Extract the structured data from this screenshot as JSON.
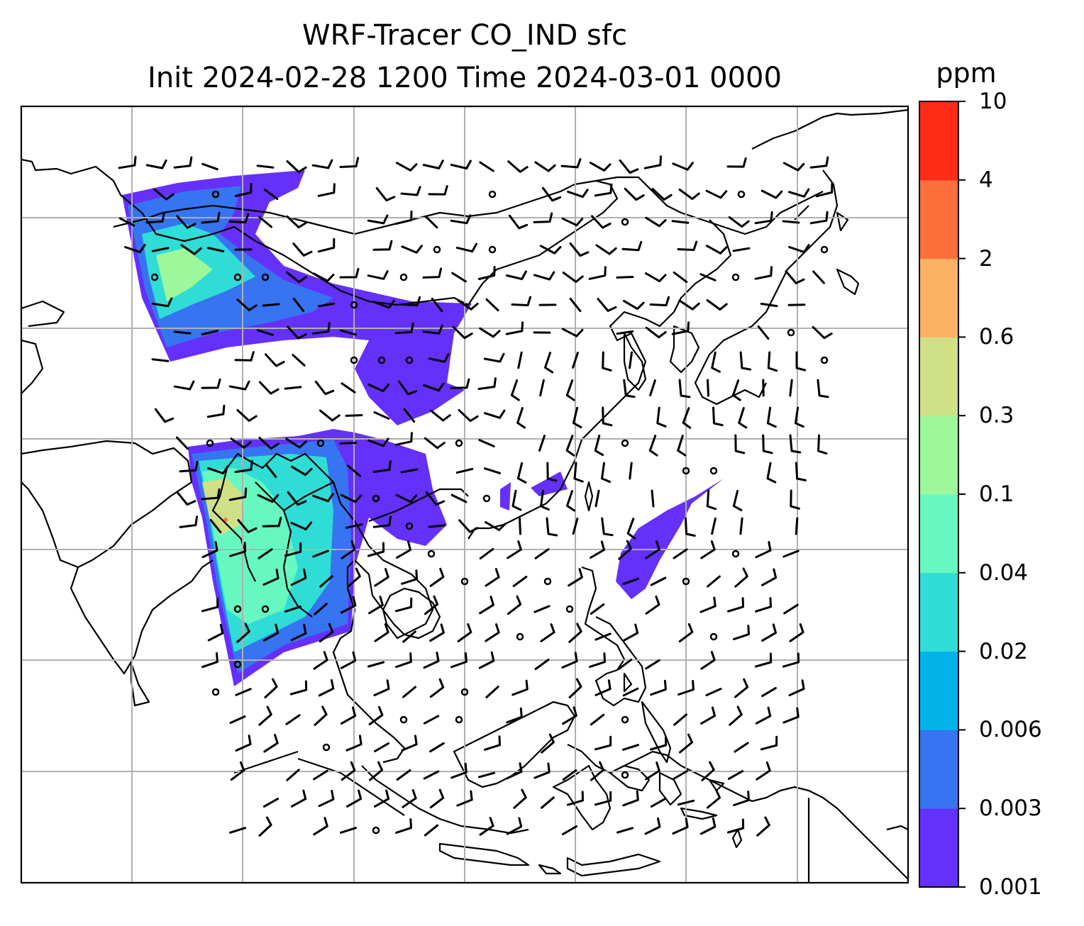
{
  "title": {
    "line1": "WRF-Tracer CO_IND sfc",
    "line2": "Init 2024-02-28 1200 Time 2024-03-01 0000"
  },
  "colorbar": {
    "unit": "ppm",
    "levels": [
      "0.001",
      "0.003",
      "0.006",
      "0.02",
      "0.04",
      "0.1",
      "0.3",
      "0.6",
      "2",
      "4",
      "10"
    ],
    "colors": [
      "#6530fa",
      "#3674f2",
      "#04b2ea",
      "#2fdcd6",
      "#66f8c0",
      "#9cf89a",
      "#cfe087",
      "#fdb163",
      "#fe703b",
      "#fe2b17"
    ]
  },
  "map": {
    "gridlines": true,
    "land_outline": "#000000",
    "gridline_color": "#b0b0b0"
  }
}
